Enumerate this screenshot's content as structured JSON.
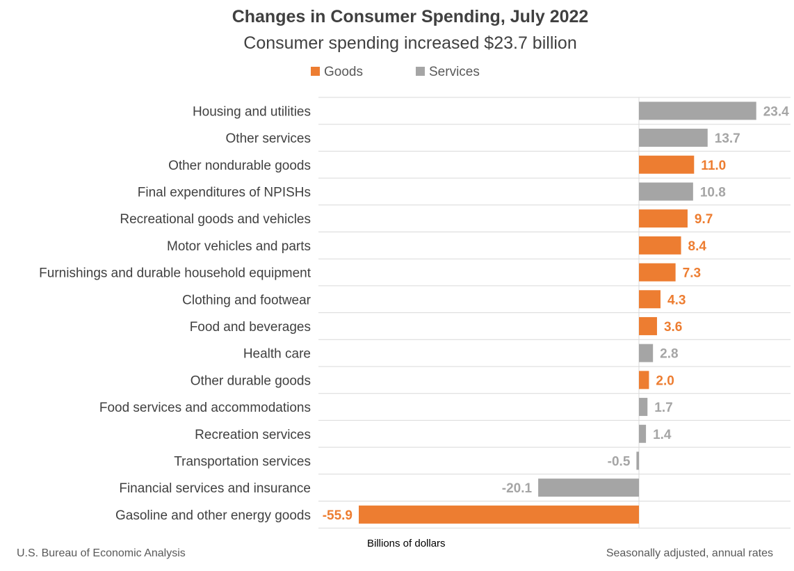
{
  "chart_data": {
    "type": "bar",
    "orientation": "horizontal",
    "title": "Changes in Consumer Spending, July 2022",
    "subtitle": "Consumer spending increased $23.7 billion",
    "legend": [
      {
        "name": "Goods",
        "color": "#ED7D31"
      },
      {
        "name": "Services",
        "color": "#A5A5A5"
      }
    ],
    "legend_position": "top-center",
    "xlabel": "Billions of dollars",
    "xlim": [
      -58.9,
      29.5
    ],
    "grid": "horizontal row separators",
    "categories": [
      "Housing and utilities",
      "Other services",
      "Other nondurable goods",
      "Final expenditures of NPISHs",
      "Recreational goods and vehicles",
      "Motor vehicles and parts",
      "Furnishings and durable household equipment",
      "Clothing and footwear",
      "Food and beverages",
      "Health care",
      "Other durable goods",
      "Food services and accommodations",
      "Recreation services",
      "Transportation services",
      "Financial services and insurance",
      "Gasoline and other energy goods"
    ],
    "values": [
      23.4,
      13.7,
      11.0,
      10.8,
      9.7,
      8.4,
      7.3,
      4.3,
      3.6,
      2.8,
      2.0,
      1.7,
      1.4,
      -0.5,
      -20.1,
      -55.9
    ],
    "value_labels": [
      "23.4",
      "13.7",
      "11.0",
      "10.8",
      "9.7",
      "8.4",
      "7.3",
      "4.3",
      "3.6",
      "2.8",
      "2.0",
      "1.7",
      "1.4",
      "-0.5",
      "-20.1",
      "-55.9"
    ],
    "groups": [
      "Services",
      "Services",
      "Goods",
      "Services",
      "Goods",
      "Goods",
      "Goods",
      "Goods",
      "Goods",
      "Services",
      "Goods",
      "Services",
      "Services",
      "Services",
      "Services",
      "Goods"
    ]
  },
  "footer": {
    "source": "U.S. Bureau of Economic Analysis",
    "units": "Billions of dollars",
    "note": "Seasonally adjusted, annual rates"
  }
}
